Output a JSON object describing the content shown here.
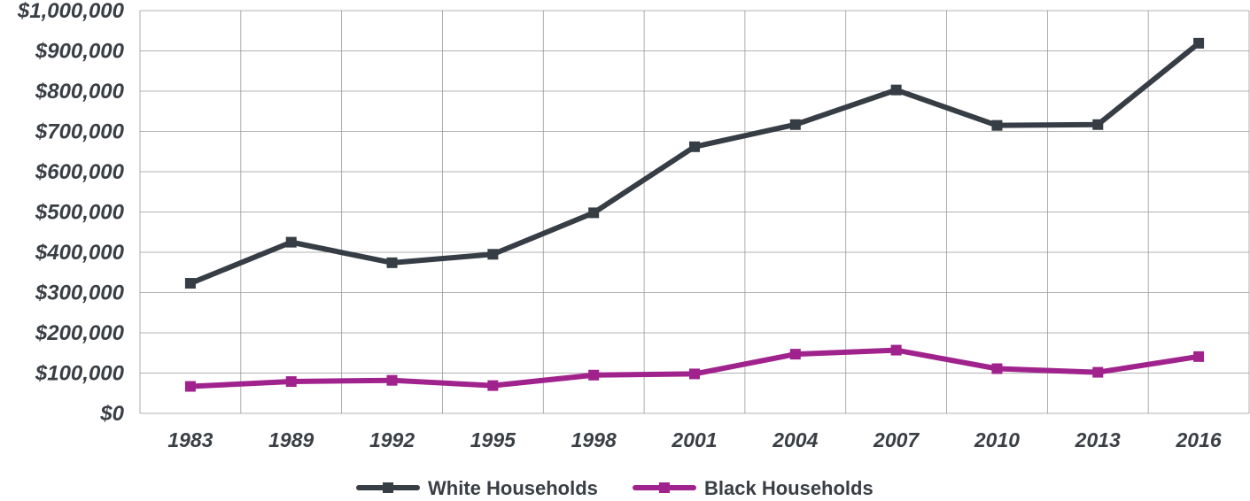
{
  "chart_data": {
    "type": "line",
    "title": "",
    "xlabel": "",
    "ylabel": "",
    "categories": [
      "1983",
      "1989",
      "1992",
      "1995",
      "1998",
      "2001",
      "2004",
      "2007",
      "2010",
      "2013",
      "2016"
    ],
    "y_ticks": [
      "$0",
      "$100,000",
      "$200,000",
      "$300,000",
      "$400,000",
      "$500,000",
      "$600,000",
      "$700,000",
      "$800,000",
      "$900,000",
      "$1,000,000"
    ],
    "ylim": [
      0,
      1000000
    ],
    "grid": true,
    "legend_position": "bottom-center",
    "series": [
      {
        "name": "White Households",
        "color": "#363d45",
        "values": [
          323000,
          425000,
          374000,
          395000,
          498000,
          662000,
          717000,
          803000,
          715000,
          717000,
          919000
        ]
      },
      {
        "name": "Black Households",
        "color": "#a0238d",
        "values": [
          67000,
          79000,
          82000,
          69000,
          95000,
          98000,
          147000,
          157000,
          111000,
          102000,
          141000
        ]
      }
    ]
  }
}
